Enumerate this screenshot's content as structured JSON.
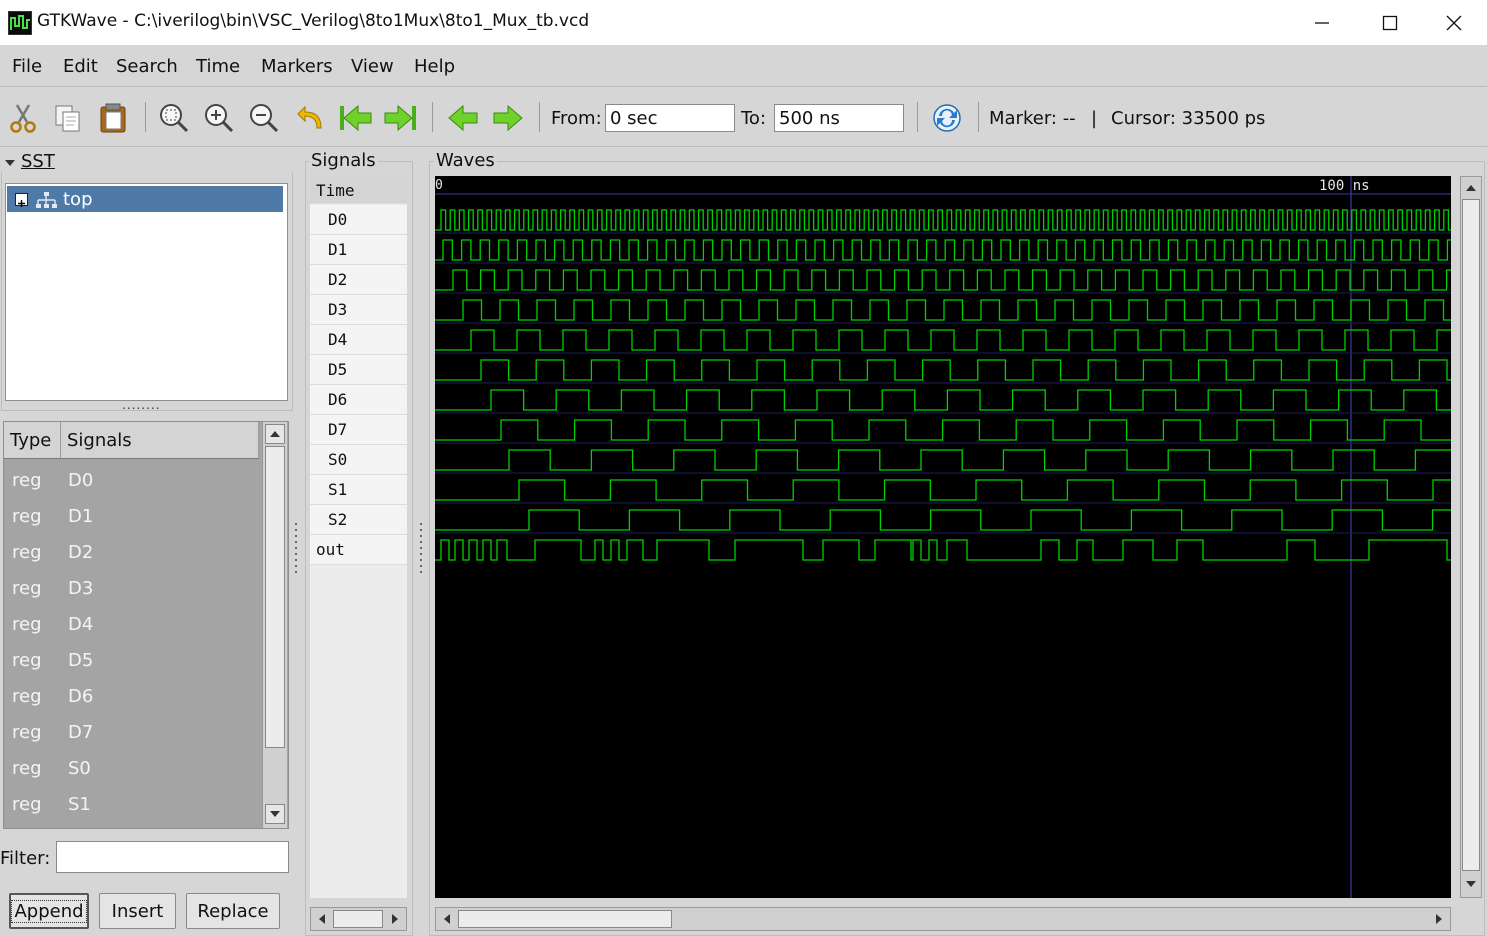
{
  "window": {
    "title": "GTKWave - C:\\iverilog\\bin\\VSC_Verilog\\8to1Mux\\8to1_Mux_tb.vcd",
    "minimize": "—",
    "maximize": "☐",
    "close": "✕"
  },
  "menu": [
    "File",
    "Edit",
    "Search",
    "Time",
    "Markers",
    "View",
    "Help"
  ],
  "toolbar": {
    "icons": [
      "cut-icon",
      "copy-icon",
      "paste-icon",
      "zoom-fit-icon",
      "zoom-in-icon",
      "zoom-out-icon",
      "undo-zoom-icon",
      "zoom-start-icon",
      "zoom-end-icon",
      "prev-edge-icon",
      "next-edge-icon",
      "reload-icon"
    ],
    "from_label": "From:",
    "from_value": "0 sec",
    "to_label": "To:",
    "to_value": "500 ns",
    "marker_text": "Marker: --",
    "divider": "|",
    "cursor_text": "Cursor: 33500 ps"
  },
  "sst": {
    "title": "SST",
    "tree_root": "top",
    "handle": "........",
    "columns": [
      "Type",
      "Signals"
    ],
    "rows": [
      {
        "type": "reg",
        "name": "D0"
      },
      {
        "type": "reg",
        "name": "D1"
      },
      {
        "type": "reg",
        "name": "D2"
      },
      {
        "type": "reg",
        "name": "D3"
      },
      {
        "type": "reg",
        "name": "D4"
      },
      {
        "type": "reg",
        "name": "D5"
      },
      {
        "type": "reg",
        "name": "D6"
      },
      {
        "type": "reg",
        "name": "D7"
      },
      {
        "type": "reg",
        "name": "S0"
      },
      {
        "type": "reg",
        "name": "S1"
      }
    ],
    "filter_label": "Filter:",
    "filter_value": "",
    "buttons": [
      "Append",
      "Insert",
      "Replace"
    ]
  },
  "signals_panel": {
    "title": "Signals",
    "header": "Time",
    "names": [
      "D0",
      "D1",
      "D2",
      "D3",
      "D4",
      "D5",
      "D6",
      "D7",
      "S0",
      "S1",
      "S2",
      "out"
    ]
  },
  "waves_panel": {
    "title": "Waves",
    "time_start": "0",
    "time_mark": "100 ns",
    "wave_color": "#00d200",
    "cursor_color": "#3a3aa8"
  }
}
